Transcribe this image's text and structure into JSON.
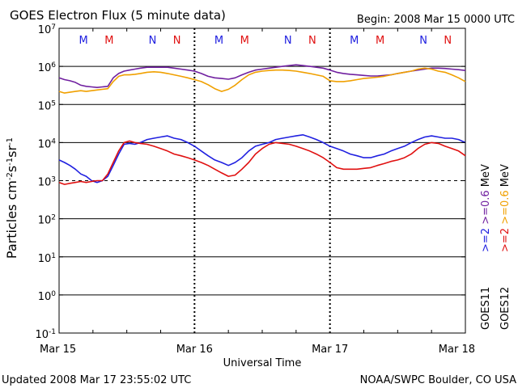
{
  "header": {
    "title": "GOES Electron Flux (5 minute data)",
    "begin": "Begin: 2008 Mar 15 0000 UTC"
  },
  "footer": {
    "updated": "Updated 2008 Mar 17 23:55:02 UTC",
    "credit": "NOAA/SWPC Boulder, CO USA"
  },
  "colors": {
    "goes11_2mev": "#2020e0",
    "goes12_2mev": "#e01010",
    "goes11_06mev": "#7020a0",
    "goes12_06mev": "#f0a000"
  },
  "chart_data": {
    "type": "line",
    "title": "GOES Electron Flux (5 minute data)",
    "xlabel": "Universal Time",
    "ylabel": "Particles cm-2s-1sr-1",
    "yscale": "log",
    "ylim": [
      0.1,
      10000000
    ],
    "xlim": [
      0,
      3
    ],
    "x_ticks": [
      {
        "x": 0,
        "label": "Mar 15"
      },
      {
        "x": 1,
        "label": "Mar 16"
      },
      {
        "x": 2,
        "label": "Mar 17"
      },
      {
        "x": 3,
        "label": "Mar 18"
      }
    ],
    "y_ticks": [
      {
        "value": 0.1,
        "base": "10",
        "exp": "-1"
      },
      {
        "value": 1,
        "base": "10",
        "exp": "0"
      },
      {
        "value": 10,
        "base": "10",
        "exp": "1"
      },
      {
        "value": 100,
        "base": "10",
        "exp": "2"
      },
      {
        "value": 1000,
        "base": "10",
        "exp": "3"
      },
      {
        "value": 10000,
        "base": "10",
        "exp": "4"
      },
      {
        "value": 100000,
        "base": "10",
        "exp": "5"
      },
      {
        "value": 1000000,
        "base": "10",
        "exp": "6"
      },
      {
        "value": 10000000,
        "base": "10",
        "exp": "7"
      }
    ],
    "grid_y": [
      100000,
      1000000
    ],
    "grid_y_lower": [
      1,
      10,
      100,
      10000
    ],
    "dashed_y": 1000,
    "legend": {
      "placement": "right",
      "groups": [
        {
          "sat": "GOES11",
          "items": [
            {
              "text": ">=2",
              "series": "goes11_2mev"
            },
            {
              "text": ">=0.6",
              "series": "goes11_06mev"
            },
            {
              "text": "MeV",
              "series": ""
            }
          ]
        },
        {
          "sat": "GOES12",
          "items": [
            {
              "text": ">=2",
              "series": "goes12_2mev"
            },
            {
              "text": ">=0.6",
              "series": "goes12_06mev"
            },
            {
              "text": "MeV",
              "series": ""
            }
          ]
        }
      ]
    },
    "markers": [
      {
        "x": 0.18,
        "label": "M",
        "color": "blue"
      },
      {
        "x": 0.37,
        "label": "M",
        "color": "red"
      },
      {
        "x": 0.69,
        "label": "N",
        "color": "blue"
      },
      {
        "x": 0.87,
        "label": "N",
        "color": "red"
      },
      {
        "x": 1.18,
        "label": "M",
        "color": "blue"
      },
      {
        "x": 1.37,
        "label": "M",
        "color": "red"
      },
      {
        "x": 1.69,
        "label": "N",
        "color": "blue"
      },
      {
        "x": 1.87,
        "label": "N",
        "color": "red"
      },
      {
        "x": 2.18,
        "label": "M",
        "color": "blue"
      },
      {
        "x": 2.37,
        "label": "M",
        "color": "red"
      },
      {
        "x": 2.69,
        "label": "N",
        "color": "blue"
      },
      {
        "x": 2.87,
        "label": "N",
        "color": "red"
      }
    ],
    "series": [
      {
        "id": "goes11_2mev",
        "x": [
          0,
          0.04,
          0.08,
          0.12,
          0.16,
          0.2,
          0.24,
          0.28,
          0.32,
          0.36,
          0.4,
          0.44,
          0.48,
          0.52,
          0.56,
          0.6,
          0.65,
          0.7,
          0.75,
          0.8,
          0.85,
          0.9,
          0.95,
          1.0,
          1.05,
          1.1,
          1.15,
          1.2,
          1.25,
          1.3,
          1.35,
          1.4,
          1.45,
          1.5,
          1.55,
          1.6,
          1.65,
          1.7,
          1.75,
          1.8,
          1.85,
          1.9,
          1.95,
          2.0,
          2.05,
          2.1,
          2.15,
          2.2,
          2.25,
          2.3,
          2.35,
          2.4,
          2.45,
          2.5,
          2.55,
          2.6,
          2.65,
          2.7,
          2.75,
          2.8,
          2.85,
          2.9,
          2.95,
          3.0
        ],
        "y": [
          3500,
          3000,
          2500,
          2000,
          1500,
          1300,
          1000,
          900,
          1000,
          1300,
          2500,
          5000,
          9000,
          9500,
          9000,
          10000,
          12000,
          13000,
          14000,
          15000,
          13000,
          12000,
          10000,
          8000,
          6000,
          4500,
          3500,
          3000,
          2500,
          3000,
          4000,
          6000,
          8000,
          9000,
          10000,
          12000,
          13000,
          14000,
          15000,
          16000,
          14000,
          12000,
          10000,
          8000,
          7000,
          6000,
          5000,
          4500,
          4000,
          4000,
          4500,
          5000,
          6000,
          7000,
          8000,
          10000,
          12000,
          14000,
          15000,
          14000,
          13000,
          13000,
          12000,
          10000
        ]
      },
      {
        "id": "goes12_2mev",
        "x": [
          0,
          0.04,
          0.08,
          0.12,
          0.16,
          0.2,
          0.24,
          0.28,
          0.32,
          0.36,
          0.4,
          0.44,
          0.48,
          0.52,
          0.56,
          0.6,
          0.65,
          0.7,
          0.75,
          0.8,
          0.85,
          0.9,
          0.95,
          1.0,
          1.05,
          1.1,
          1.15,
          1.2,
          1.25,
          1.3,
          1.35,
          1.4,
          1.45,
          1.5,
          1.55,
          1.6,
          1.65,
          1.7,
          1.75,
          1.8,
          1.85,
          1.9,
          1.95,
          2.0,
          2.05,
          2.1,
          2.15,
          2.2,
          2.25,
          2.3,
          2.35,
          2.4,
          2.45,
          2.5,
          2.55,
          2.6,
          2.65,
          2.7,
          2.75,
          2.8,
          2.85,
          2.9,
          2.95,
          3.0
        ],
        "y": [
          900,
          800,
          850,
          900,
          950,
          900,
          950,
          1000,
          1000,
          1500,
          3000,
          6000,
          10000,
          11000,
          10000,
          9500,
          9000,
          8000,
          7000,
          6000,
          5000,
          4500,
          4000,
          3500,
          3000,
          2500,
          2000,
          1600,
          1300,
          1400,
          2000,
          3000,
          5000,
          7000,
          9000,
          10000,
          9500,
          9000,
          8000,
          7000,
          6000,
          5000,
          4000,
          3000,
          2200,
          2000,
          2000,
          2000,
          2100,
          2200,
          2500,
          2800,
          3200,
          3500,
          4000,
          5000,
          7000,
          9000,
          10000,
          9500,
          8000,
          7000,
          6000,
          4500
        ]
      },
      {
        "id": "goes11_06mev",
        "x": [
          0,
          0.04,
          0.08,
          0.12,
          0.16,
          0.2,
          0.24,
          0.28,
          0.32,
          0.36,
          0.4,
          0.44,
          0.48,
          0.52,
          0.56,
          0.6,
          0.65,
          0.7,
          0.75,
          0.8,
          0.85,
          0.9,
          0.95,
          1.0,
          1.05,
          1.1,
          1.15,
          1.2,
          1.25,
          1.3,
          1.35,
          1.4,
          1.45,
          1.5,
          1.55,
          1.6,
          1.65,
          1.7,
          1.75,
          1.8,
          1.85,
          1.9,
          1.95,
          2.0,
          2.05,
          2.1,
          2.15,
          2.2,
          2.25,
          2.3,
          2.35,
          2.4,
          2.45,
          2.5,
          2.55,
          2.6,
          2.65,
          2.7,
          2.75,
          2.8,
          2.85,
          2.9,
          2.95,
          3.0
        ],
        "y": [
          500000,
          450000,
          420000,
          380000,
          320000,
          300000,
          290000,
          280000,
          290000,
          300000,
          500000,
          650000,
          750000,
          800000,
          850000,
          900000,
          950000,
          950000,
          950000,
          950000,
          900000,
          850000,
          800000,
          750000,
          650000,
          550000,
          500000,
          480000,
          460000,
          500000,
          600000,
          700000,
          800000,
          850000,
          900000,
          950000,
          1000000,
          1050000,
          1100000,
          1050000,
          1000000,
          950000,
          900000,
          800000,
          700000,
          650000,
          620000,
          600000,
          580000,
          560000,
          560000,
          580000,
          600000,
          650000,
          700000,
          750000,
          800000,
          850000,
          900000,
          900000,
          880000,
          850000,
          820000,
          780000
        ]
      },
      {
        "id": "goes12_06mev",
        "x": [
          0,
          0.04,
          0.08,
          0.12,
          0.16,
          0.2,
          0.24,
          0.28,
          0.32,
          0.36,
          0.4,
          0.44,
          0.48,
          0.52,
          0.56,
          0.6,
          0.65,
          0.7,
          0.75,
          0.8,
          0.85,
          0.9,
          0.95,
          1.0,
          1.05,
          1.1,
          1.15,
          1.2,
          1.25,
          1.3,
          1.35,
          1.4,
          1.45,
          1.5,
          1.55,
          1.6,
          1.65,
          1.7,
          1.75,
          1.8,
          1.85,
          1.9,
          1.95,
          2.0,
          2.05,
          2.1,
          2.15,
          2.2,
          2.25,
          2.3,
          2.35,
          2.4,
          2.45,
          2.5,
          2.55,
          2.6,
          2.65,
          2.7,
          2.75,
          2.8,
          2.85,
          2.9,
          2.95,
          3.0
        ],
        "y": [
          220000,
          200000,
          210000,
          220000,
          230000,
          220000,
          230000,
          240000,
          250000,
          260000,
          400000,
          550000,
          600000,
          600000,
          620000,
          650000,
          700000,
          720000,
          700000,
          650000,
          600000,
          550000,
          500000,
          450000,
          400000,
          330000,
          260000,
          220000,
          250000,
          320000,
          450000,
          600000,
          700000,
          750000,
          780000,
          800000,
          800000,
          780000,
          750000,
          700000,
          650000,
          600000,
          550000,
          420000,
          400000,
          400000,
          420000,
          450000,
          480000,
          500000,
          520000,
          550000,
          600000,
          650000,
          700000,
          750000,
          850000,
          900000,
          850000,
          750000,
          700000,
          600000,
          500000,
          400000
        ]
      }
    ]
  }
}
